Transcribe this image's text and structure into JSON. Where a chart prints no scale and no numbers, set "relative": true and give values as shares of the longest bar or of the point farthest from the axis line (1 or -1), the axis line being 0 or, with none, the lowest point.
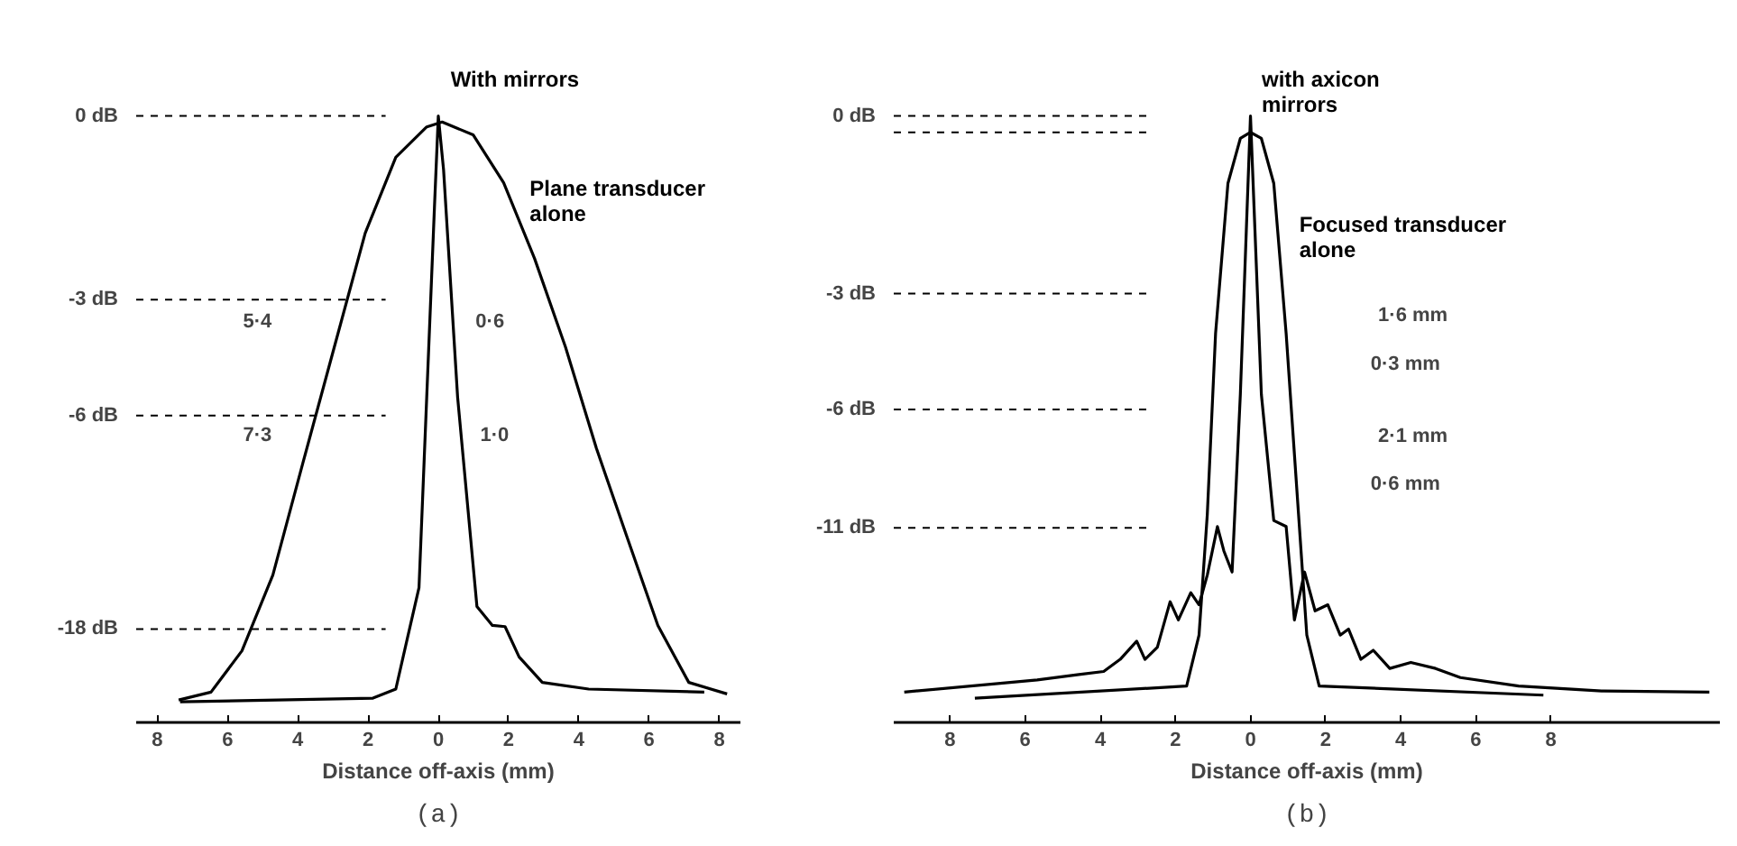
{
  "chart_data": [
    {
      "type": "line",
      "title": "(a)",
      "xlabel": "Distance off-axis (mm)",
      "relative": true,
      "grid": false,
      "legend": false,
      "marker": "none",
      "line_style": "solid",
      "xlim": [
        -8.6,
        8.6
      ],
      "xticks": [
        {
          "value": -8,
          "label": "8"
        },
        {
          "value": -6,
          "label": "6"
        },
        {
          "value": -4,
          "label": "4"
        },
        {
          "value": -2,
          "label": "2"
        },
        0,
        2,
        4,
        6,
        8
      ],
      "series": [
        {
          "name": "With mirrors",
          "color": "#000000",
          "x": [
            -7.35,
            -1.86,
            -1.21,
            -0.88,
            -0.55,
            -0.33,
            -0.11,
            0,
            0.15,
            0.55,
            1.1,
            1.54,
            1.9,
            2.3,
            2.96,
            4.28,
            7.57
          ],
          "values": [
            0.034,
            0.04,
            0.055,
            0.139,
            0.222,
            0.536,
            0.849,
            1.0,
            0.911,
            0.536,
            0.191,
            0.16,
            0.158,
            0.108,
            0.066,
            0.055,
            0.05
          ]
        },
        {
          "name": "Plane transducer alone",
          "color": "#000000",
          "x": [
            -7.39,
            -6.47,
            -5.59,
            -4.71,
            -3.84,
            -2.96,
            -2.08,
            -1.21,
            -0.33,
            0.11,
            0.99,
            1.86,
            2.74,
            3.62,
            4.5,
            5.37,
            6.25,
            7.13,
            8.22
          ],
          "values": [
            0.037,
            0.05,
            0.118,
            0.243,
            0.431,
            0.619,
            0.807,
            0.932,
            0.982,
            0.99,
            0.969,
            0.89,
            0.765,
            0.619,
            0.452,
            0.306,
            0.16,
            0.066,
            0.047
          ]
        }
      ],
      "ref_lines": [
        {
          "axis": "y",
          "value": 1.0,
          "label": "0 dB",
          "line_style": "dashed"
        },
        {
          "axis": "y",
          "value": 0.697,
          "label": "-3 dB",
          "line_style": "dashed"
        },
        {
          "axis": "y",
          "value": 0.506,
          "label": "-6 dB",
          "line_style": "dashed"
        },
        {
          "axis": "y",
          "value": 0.154,
          "label": "-18 dB",
          "line_style": "dashed"
        }
      ],
      "annotations": [
        "5·4",
        "0·6",
        "7·3",
        "1·0"
      ]
    },
    {
      "type": "line",
      "title": "(b)",
      "xlabel": "Distance off-axis (mm)",
      "relative": true,
      "grid": false,
      "legend": false,
      "marker": "none",
      "line_style": "solid",
      "xlim": [
        -9.5,
        12.5
      ],
      "xticks": [
        {
          "value": -8,
          "label": "8"
        },
        {
          "value": -6,
          "label": "6"
        },
        {
          "value": -4,
          "label": "4"
        },
        {
          "value": -2,
          "label": "2"
        },
        0,
        2,
        4,
        6,
        8
      ],
      "series": [
        {
          "name": "with axicon mirrors",
          "color": "#000000",
          "x": [
            -9.22,
            -5.68,
            -4.57,
            -3.91,
            -3.47,
            -3.03,
            -2.81,
            -2.48,
            -2.14,
            -1.92,
            -1.59,
            -1.37,
            -1.15,
            -0.88,
            -0.71,
            -0.49,
            -0.27,
            0,
            0.29,
            0.62,
            0.95,
            1.17,
            1.44,
            1.72,
            2.06,
            2.39,
            2.61,
            2.94,
            3.27,
            3.71,
            4.27,
            4.93,
            5.59,
            7.14,
            9.35,
            12.22
          ],
          "values": [
            0.05,
            0.07,
            0.079,
            0.084,
            0.104,
            0.134,
            0.104,
            0.124,
            0.199,
            0.169,
            0.214,
            0.194,
            0.243,
            0.323,
            0.283,
            0.248,
            0.541,
            1.0,
            0.541,
            0.333,
            0.323,
            0.169,
            0.248,
            0.184,
            0.194,
            0.144,
            0.154,
            0.104,
            0.119,
            0.089,
            0.099,
            0.089,
            0.074,
            0.06,
            0.052,
            0.05
          ]
        },
        {
          "name": "Focused transducer alone",
          "color": "#000000",
          "x": [
            -7.34,
            -1.7,
            -1.37,
            -1.15,
            -0.93,
            -0.6,
            -0.27,
            0,
            0.29,
            0.62,
            0.95,
            1.28,
            1.5,
            1.83,
            7.8
          ],
          "values": [
            0.04,
            0.06,
            0.144,
            0.343,
            0.641,
            0.889,
            0.963,
            0.973,
            0.963,
            0.889,
            0.641,
            0.343,
            0.144,
            0.06,
            0.045
          ]
        }
      ],
      "ref_lines": [
        {
          "axis": "y",
          "value": 1.0,
          "label": "0 dB",
          "line_style": "dashed"
        },
        {
          "axis": "y",
          "value": 0.973,
          "label": null,
          "line_style": "dashed"
        },
        {
          "axis": "y",
          "value": 0.707,
          "label": "-3 dB",
          "line_style": "dashed"
        },
        {
          "axis": "y",
          "value": 0.516,
          "label": "-6 dB",
          "line_style": "dashed"
        },
        {
          "axis": "y",
          "value": 0.321,
          "label": "-11 dB",
          "line_style": "dashed"
        }
      ],
      "annotations": [
        "1·6 mm",
        "0·3 mm",
        "2·1 mm",
        "0·6 mm"
      ]
    }
  ]
}
